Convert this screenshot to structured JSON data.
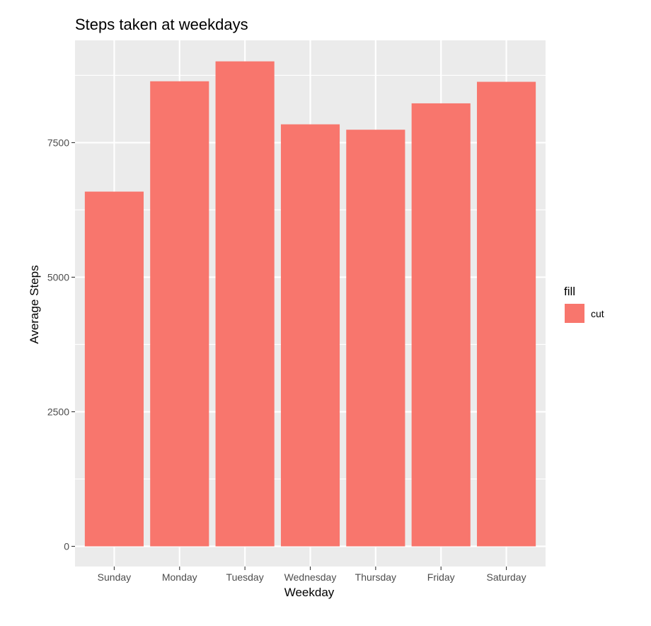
{
  "chart_data": {
    "type": "bar",
    "title": "Steps taken at weekdays",
    "xlabel": "Weekday",
    "ylabel": "Average Steps",
    "categories": [
      "Sunday",
      "Monday",
      "Tuesday",
      "Wednesday",
      "Thursday",
      "Friday",
      "Saturday"
    ],
    "values": [
      6590,
      8640,
      9010,
      7840,
      7740,
      8230,
      8630
    ],
    "ylim": [
      -375,
      9400
    ],
    "yticks": [
      0,
      2500,
      5000,
      7500
    ],
    "ytick_labels": [
      "0",
      "2500",
      "5000",
      "7500"
    ],
    "grid": true,
    "legend": {
      "title": "fill",
      "position": "right",
      "entries": [
        {
          "label": "cut",
          "color": "#F8766D"
        }
      ]
    },
    "bar_color": "#F8766D",
    "panel_background": "#EBEBEB"
  }
}
